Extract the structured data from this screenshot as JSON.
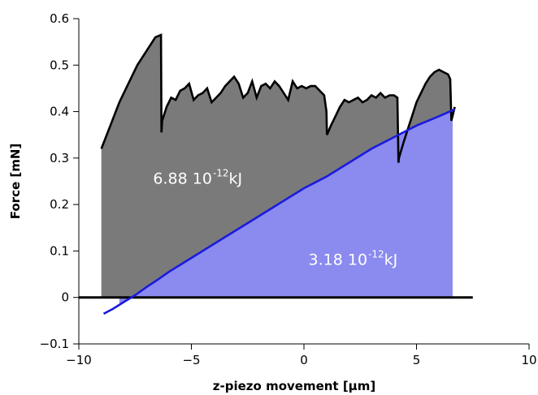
{
  "chart_data": {
    "type": "area",
    "title": "",
    "xlabel": "z-piezo movement [µm]",
    "ylabel": "Force [mN]",
    "xlim": [
      -10,
      10
    ],
    "ylim": [
      -0.1,
      0.6
    ],
    "xticks": [
      -10,
      -5,
      0,
      5,
      10
    ],
    "xtick_labels": [
      "−10",
      "−5",
      "0",
      "5",
      "10"
    ],
    "yticks": [
      -0.1,
      0,
      0.1,
      0.2,
      0.3,
      0.4,
      0.5,
      0.6
    ],
    "ytick_labels": [
      "−0.1",
      "0",
      "0.1",
      "0.2",
      "0.3",
      "0.4",
      "0.5",
      "0.6"
    ],
    "grid": false,
    "colors": {
      "force_curve_line": "#000000",
      "force_area_fill": "#7a7a7a",
      "fit_line": "#1a1adc",
      "fit_area_fill": "#8a8aef",
      "baseline": "#000000"
    },
    "series": [
      {
        "x": [
          -9.0,
          -8.6,
          -8.2,
          -7.8,
          -7.4,
          -7.0,
          -6.6,
          -6.35,
          -6.33,
          -6.3,
          -6.1,
          -5.9,
          -5.7,
          -5.5,
          -5.3,
          -5.1,
          -4.9,
          -4.7,
          -4.5,
          -4.3,
          -4.1,
          -3.9,
          -3.7,
          -3.5,
          -3.3,
          -3.1,
          -2.9,
          -2.7,
          -2.5,
          -2.3,
          -2.1,
          -1.9,
          -1.7,
          -1.5,
          -1.3,
          -1.1,
          -0.9,
          -0.7,
          -0.5,
          -0.3,
          -0.1,
          0.1,
          0.3,
          0.5,
          0.7,
          0.9,
          1.0,
          1.02,
          1.2,
          1.4,
          1.6,
          1.8,
          2.0,
          2.2,
          2.4,
          2.6,
          2.8,
          3.0,
          3.2,
          3.4,
          3.6,
          3.8,
          4.0,
          4.15,
          4.2,
          4.22,
          4.4,
          4.6,
          4.8,
          5.0,
          5.2,
          5.4,
          5.6,
          5.8,
          6.0,
          6.2,
          6.4,
          6.5,
          6.55,
          6.6,
          6.7
        ],
        "y": [
          0.32,
          0.37,
          0.42,
          0.46,
          0.5,
          0.53,
          0.56,
          0.565,
          0.355,
          0.38,
          0.41,
          0.43,
          0.425,
          0.445,
          0.45,
          0.46,
          0.425,
          0.435,
          0.44,
          0.45,
          0.42,
          0.43,
          0.44,
          0.455,
          0.465,
          0.475,
          0.46,
          0.43,
          0.44,
          0.465,
          0.43,
          0.455,
          0.46,
          0.45,
          0.465,
          0.455,
          0.44,
          0.425,
          0.465,
          0.45,
          0.455,
          0.45,
          0.455,
          0.455,
          0.445,
          0.435,
          0.4,
          0.35,
          0.37,
          0.39,
          0.41,
          0.425,
          0.42,
          0.425,
          0.43,
          0.42,
          0.425,
          0.435,
          0.43,
          0.44,
          0.43,
          0.435,
          0.435,
          0.43,
          0.29,
          0.3,
          0.33,
          0.36,
          0.39,
          0.42,
          0.44,
          0.46,
          0.475,
          0.485,
          0.49,
          0.485,
          0.48,
          0.47,
          0.38,
          0.39,
          0.41
        ]
      },
      {
        "x": [
          -8.9,
          -8.5,
          -8.0,
          -7.5,
          -7.0,
          -6.5,
          -6.0,
          -5.0,
          -4.0,
          -3.0,
          -2.0,
          -1.0,
          0.0,
          1.0,
          2.0,
          3.0,
          4.0,
          5.0,
          6.0,
          6.7
        ],
        "y": [
          -0.035,
          -0.025,
          -0.01,
          0.005,
          0.022,
          0.038,
          0.055,
          0.085,
          0.115,
          0.145,
          0.175,
          0.205,
          0.235,
          0.26,
          0.29,
          0.32,
          0.345,
          0.37,
          0.39,
          0.405
        ]
      }
    ],
    "baseline": {
      "x": [
        -10,
        7.5
      ],
      "y": 0
    },
    "shaded_regions": [
      {
        "fill_under": "series0",
        "x_range": [
          -9.0,
          6.6
        ]
      },
      {
        "fill_under": "series1",
        "x_range": [
          -8.2,
          6.6
        ]
      }
    ],
    "annotations": [
      {
        "text": "6.88 10",
        "superscript": "-12",
        "suffix": "kJ",
        "x": -6.7,
        "y": 0.245
      },
      {
        "text": "3.18 10",
        "superscript": "-12",
        "suffix": "kJ",
        "x": 0.2,
        "y": 0.07
      }
    ]
  }
}
